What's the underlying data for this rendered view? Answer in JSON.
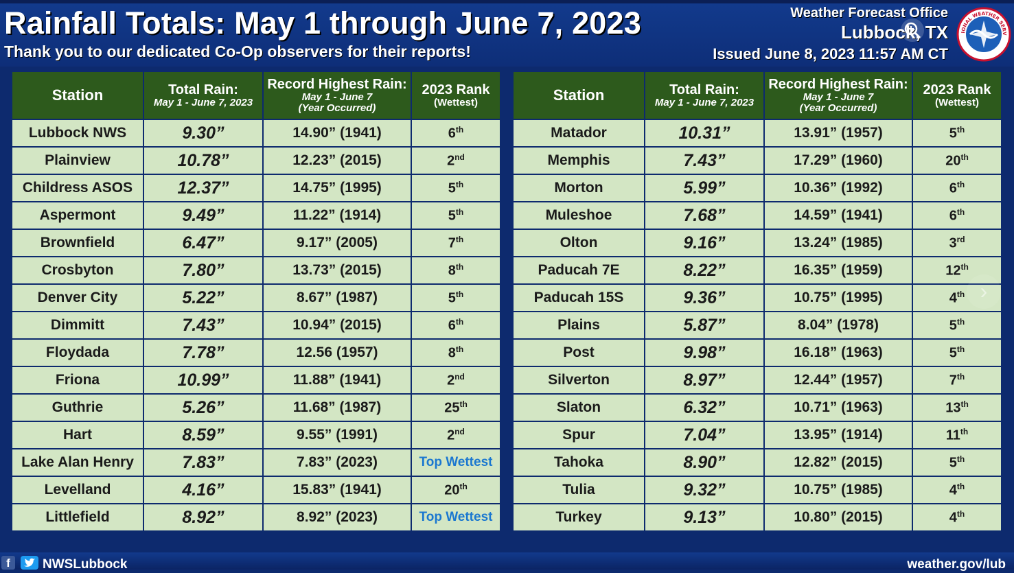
{
  "header": {
    "title": "Rainfall Totals: May 1 through June 7, 2023",
    "subtitle": "Thank you to our dedicated Co-Op observers for their reports!",
    "office": "Weather Forecast Office",
    "city": "Lubbock, TX",
    "issued": "Issued June 8, 2023 11:57 AM CT",
    "logo_text": "NATIONAL WEATHER SERVICE"
  },
  "columns": {
    "station": "Station",
    "total_main": "Total Rain:",
    "total_sub": "May 1 - June 7, 2023",
    "record_main": "Record Highest Rain:",
    "record_sub1": "May 1 - June 7",
    "record_sub2": "(Year Occurred)",
    "rank_main": "2023 Rank",
    "rank_sub": "(Wettest)"
  },
  "left_rows": [
    {
      "station": "Lubbock NWS",
      "total": "9.30”",
      "record": "14.90” (1941)",
      "rank_num": "6",
      "rank_suf": "th"
    },
    {
      "station": "Plainview",
      "total": "10.78”",
      "record": "12.23” (2015)",
      "rank_num": "2",
      "rank_suf": "nd"
    },
    {
      "station": "Childress ASOS",
      "total": "12.37”",
      "record": "14.75” (1995)",
      "rank_num": "5",
      "rank_suf": "th"
    },
    {
      "station": "Aspermont",
      "total": "9.49”",
      "record": "11.22” (1914)",
      "rank_num": "5",
      "rank_suf": "th"
    },
    {
      "station": "Brownfield",
      "total": "6.47”",
      "record": "9.17” (2005)",
      "rank_num": "7",
      "rank_suf": "th"
    },
    {
      "station": "Crosbyton",
      "total": "7.80”",
      "record": "13.73” (2015)",
      "rank_num": "8",
      "rank_suf": "th"
    },
    {
      "station": "Denver City",
      "total": "5.22”",
      "record": "8.67” (1987)",
      "rank_num": "5",
      "rank_suf": "th"
    },
    {
      "station": "Dimmitt",
      "total": "7.43”",
      "record": "10.94” (2015)",
      "rank_num": "6",
      "rank_suf": "th"
    },
    {
      "station": "Floydada",
      "total": "7.78”",
      "record": "12.56 (1957)",
      "rank_num": "8",
      "rank_suf": "th"
    },
    {
      "station": "Friona",
      "total": "10.99”",
      "record": "11.88” (1941)",
      "rank_num": "2",
      "rank_suf": "nd"
    },
    {
      "station": "Guthrie",
      "total": "5.26”",
      "record": "11.68” (1987)",
      "rank_num": "25",
      "rank_suf": "th"
    },
    {
      "station": "Hart",
      "total": "8.59”",
      "record": "9.55” (1991)",
      "rank_num": "2",
      "rank_suf": "nd"
    },
    {
      "station": "Lake Alan Henry",
      "total": "7.83”",
      "record": "7.83” (2023)",
      "rank_top": "Top Wettest"
    },
    {
      "station": "Levelland",
      "total": "4.16”",
      "record": "15.83” (1941)",
      "rank_num": "20",
      "rank_suf": "th"
    },
    {
      "station": "Littlefield",
      "total": "8.92”",
      "record": "8.92” (2023)",
      "rank_top": "Top Wettest"
    }
  ],
  "right_rows": [
    {
      "station": "Matador",
      "total": "10.31”",
      "record": "13.91” (1957)",
      "rank_num": "5",
      "rank_suf": "th"
    },
    {
      "station": "Memphis",
      "total": "7.43”",
      "record": "17.29” (1960)",
      "rank_num": "20",
      "rank_suf": "th"
    },
    {
      "station": "Morton",
      "total": "5.99”",
      "record": "10.36” (1992)",
      "rank_num": "6",
      "rank_suf": "th"
    },
    {
      "station": "Muleshoe",
      "total": "7.68”",
      "record": "14.59” (1941)",
      "rank_num": "6",
      "rank_suf": "th"
    },
    {
      "station": "Olton",
      "total": "9.16”",
      "record": "13.24” (1985)",
      "rank_num": "3",
      "rank_suf": "rd"
    },
    {
      "station": "Paducah 7E",
      "total": "8.22”",
      "record": "16.35” (1959)",
      "rank_num": "12",
      "rank_suf": "th"
    },
    {
      "station": "Paducah 15S",
      "total": "9.36”",
      "record": "10.75” (1995)",
      "rank_num": "4",
      "rank_suf": "th"
    },
    {
      "station": "Plains",
      "total": "5.87”",
      "record": "8.04” (1978)",
      "rank_num": "5",
      "rank_suf": "th"
    },
    {
      "station": "Post",
      "total": "9.98”",
      "record": "16.18” (1963)",
      "rank_num": "5",
      "rank_suf": "th"
    },
    {
      "station": "Silverton",
      "total": "8.97”",
      "record": "12.44” (1957)",
      "rank_num": "7",
      "rank_suf": "th"
    },
    {
      "station": "Slaton",
      "total": "6.32”",
      "record": "10.71” (1963)",
      "rank_num": "13",
      "rank_suf": "th"
    },
    {
      "station": "Spur",
      "total": "7.04”",
      "record": "13.95” (1914)",
      "rank_num": "11",
      "rank_suf": "th"
    },
    {
      "station": "Tahoka",
      "total": "8.90”",
      "record": "12.82” (2015)",
      "rank_num": "5",
      "rank_suf": "th"
    },
    {
      "station": "Tulia",
      "total": "9.32”",
      "record": "10.75” (1985)",
      "rank_num": "4",
      "rank_suf": "th"
    },
    {
      "station": "Turkey",
      "total": "9.13”",
      "record": "10.80” (2015)",
      "rank_num": "4",
      "rank_suf": "th"
    }
  ],
  "footer": {
    "social_handle": "NWSLubbock",
    "website": "weather.gov/lub"
  },
  "colors": {
    "background": "#0d2a6e",
    "header_cell": "#2d5a1c",
    "body_cell": "#d3e6c4",
    "top_wettest": "#1a77d0"
  },
  "icons": [
    "facebook-icon",
    "twitter-icon",
    "zoom-in-icon",
    "next-arrow-icon",
    "nws-logo"
  ]
}
